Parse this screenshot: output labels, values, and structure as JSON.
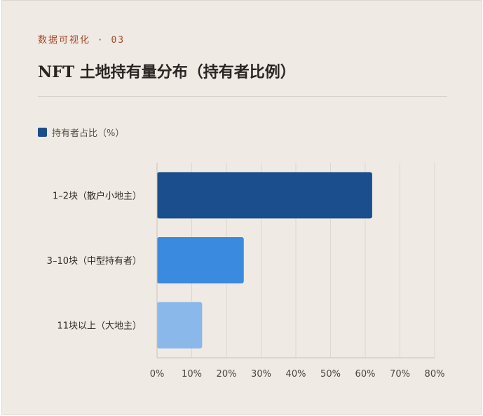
{
  "kicker": "数据可视化 · 03",
  "title": "NFT 土地持有量分布（持有者比例）",
  "chart_data": {
    "type": "bar",
    "orientation": "horizontal",
    "title": "NFT 土地持有量分布（持有者比例）",
    "categories": [
      "1–2块（散户小地主）",
      "3–10块（中型持有者）",
      "11块以上（大地主）"
    ],
    "series": [
      {
        "name": "持有者占比（%）",
        "values": [
          62,
          25,
          13
        ],
        "colors": [
          "#1a4e8c",
          "#3a8ae0",
          "#8bb8ea"
        ]
      }
    ],
    "xlim": [
      0,
      80
    ],
    "x_ticks": [
      "0%",
      "10%",
      "20%",
      "30%",
      "40%",
      "50%",
      "60%",
      "70%",
      "80%"
    ],
    "grid": true,
    "legend_position": "top-left"
  }
}
